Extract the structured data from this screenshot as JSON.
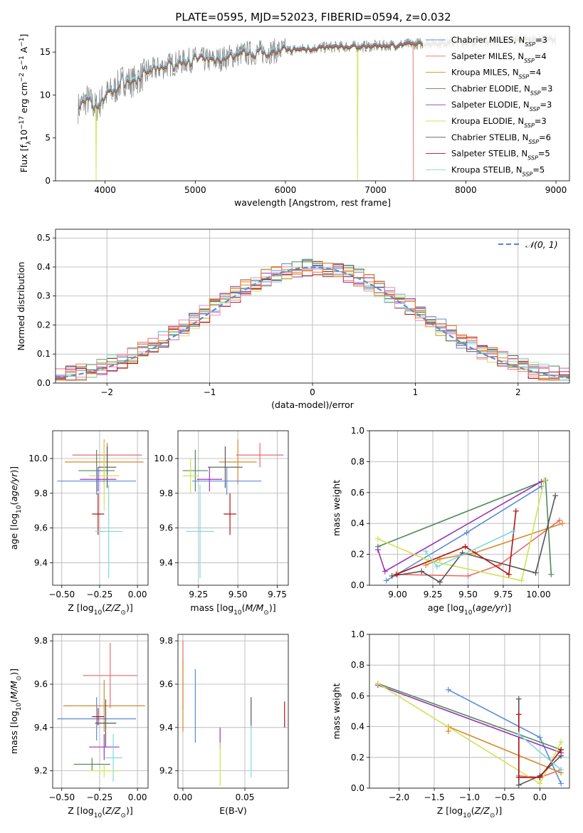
{
  "figure_title": "PLATE=0595, MJD=52023, FIBERID=0594, z=0.032",
  "colors": {
    "Chabrier MILES": "#5b8cd6",
    "Salpeter MILES": "#ea6a6a",
    "Kroupa MILES": "#d48a2c",
    "Chabrier ELODIE": "#4f8a55",
    "Salpeter ELODIE": "#9b32b5",
    "Kroupa ELODIE": "#cfe356",
    "Chabrier STELIB": "#555555",
    "Salpeter STELIB": "#b11414",
    "Kroupa STELIB": "#7fd8df",
    "data": "#808080",
    "extra_orange": "#ee7a1f",
    "extra_pink": "#ee88bb"
  },
  "chart_data": [
    {
      "id": "spectrum",
      "type": "line",
      "title": "PLATE=0595, MJD=52023, FIBERID=0594, z=0.032",
      "xlabel": "wavelength [Angstrom, rest frame]",
      "ylabel": "Flux [fλ10⁻¹⁷ erg cm⁻² s⁻¹ A⁻¹]",
      "xlim": [
        3450,
        9150
      ],
      "ylim": [
        0,
        18
      ],
      "xticks": [
        4000,
        5000,
        6000,
        7000,
        8000,
        9000
      ],
      "yticks": [
        0,
        5,
        10,
        15
      ],
      "grid": false,
      "legend_position": "upper-right",
      "legend": [
        "Chabrier MILES, N_SSP=3",
        "Salpeter MILES, N_SSP=4",
        "Kroupa MILES, N_SSP=4",
        "Chabrier ELODIE, N_SSP=3",
        "Salpeter ELODIE, N_SSP=3",
        "Kroupa ELODIE, N_SSP=3",
        "Chabrier STELIB, N_SSP=6",
        "Salpeter STELIB, N_SSP=5",
        "Kroupa STELIB, N_SSP=5"
      ],
      "continuum_points": [
        [
          3700,
          8.5
        ],
        [
          3800,
          9.5
        ],
        [
          3900,
          8.5
        ],
        [
          4000,
          10.0
        ],
        [
          4100,
          10.5
        ],
        [
          4200,
          11.8
        ],
        [
          4300,
          11.5
        ],
        [
          4500,
          12.8
        ],
        [
          4700,
          13.5
        ],
        [
          5000,
          14.2
        ],
        [
          5200,
          14.0
        ],
        [
          5500,
          14.8
        ],
        [
          6000,
          15.2
        ],
        [
          6500,
          15.6
        ],
        [
          7000,
          15.7
        ],
        [
          7500,
          16.0
        ],
        [
          8000,
          16.2
        ],
        [
          8500,
          16.4
        ],
        [
          9000,
          16.5
        ]
      ],
      "model_end_wavelength": 9000,
      "dropouts": [
        [
          3900,
          "Kroupa ELODIE"
        ],
        [
          6800,
          "Kroupa ELODIE"
        ],
        [
          7420,
          "Salpeter MILES"
        ]
      ]
    },
    {
      "id": "residuals",
      "type": "histogram",
      "xlabel": "(data-model)/error",
      "ylabel": "Normed distribution",
      "xlim": [
        -2.5,
        2.5
      ],
      "ylim": [
        0,
        0.53
      ],
      "xticks": [
        -2,
        -1,
        0,
        1,
        2
      ],
      "yticks": [
        0.0,
        0.1,
        0.2,
        0.3,
        0.4,
        0.5
      ],
      "grid": true,
      "bin_width": 0.1,
      "legend_position": "upper-right",
      "reference_curve": {
        "label": "𝒩(0, 1)",
        "mean": 0,
        "sigma": 1
      }
    },
    {
      "id": "age-vs-z",
      "type": "errorbar",
      "xlabel": "Z [log₁₀(Z/Z⊙)]",
      "ylabel": "age  [log₁₀(age/yr)]",
      "xlim": [
        -0.56,
        0.07
      ],
      "ylim": [
        9.27,
        10.16
      ],
      "xticks": [
        -0.5,
        -0.25,
        0.0
      ],
      "yticks": [
        9.4,
        9.6,
        9.8,
        10.0
      ],
      "grid": true,
      "points": [
        {
          "series": "Salpeter MILES",
          "x": -0.2,
          "y": 10.02,
          "xerr": 0.23,
          "yerr": 0.07
        },
        {
          "series": "Kroupa MILES",
          "x": -0.22,
          "y": 9.98,
          "xerr": 0.26,
          "yerr": 0.13
        },
        {
          "series": "Chabrier STELIB",
          "x": -0.2,
          "y": 9.95,
          "xerr": 0.06,
          "yerr": 0.12
        },
        {
          "series": "Chabrier ELODIE",
          "x": -0.27,
          "y": 9.93,
          "xerr": 0.12,
          "yerr": 0.12
        },
        {
          "series": "Kroupa ELODIE",
          "x": -0.22,
          "y": 9.9,
          "xerr": 0.1,
          "yerr": 0.2
        },
        {
          "series": "Salpeter ELODIE",
          "x": -0.26,
          "y": 9.88,
          "xerr": 0.12,
          "yerr": 0.07
        },
        {
          "series": "Chabrier MILES",
          "x": -0.27,
          "y": 9.87,
          "xerr": 0.26,
          "yerr": 0.08
        },
        {
          "series": "Salpeter STELIB",
          "x": -0.26,
          "y": 9.68,
          "xerr": 0.04,
          "yerr": 0.12
        },
        {
          "series": "Kroupa STELIB",
          "x": -0.19,
          "y": 9.58,
          "xerr": 0.09,
          "yerr": 0.27
        }
      ]
    },
    {
      "id": "age-vs-mass",
      "type": "errorbar",
      "xlabel": "mass [log₁₀(M/M⊙)]",
      "ylabel": "",
      "xlim": [
        9.12,
        9.82
      ],
      "ylim": [
        9.27,
        10.16
      ],
      "xticks": [
        9.25,
        9.5,
        9.75
      ],
      "yticks": [
        9.4,
        9.6,
        9.8,
        10.0
      ],
      "grid": true,
      "points": [
        {
          "series": "Salpeter MILES",
          "x": 9.64,
          "y": 10.02,
          "xerr": 0.15,
          "yerr": 0.07
        },
        {
          "series": "Kroupa MILES",
          "x": 9.5,
          "y": 9.98,
          "xerr": 0.12,
          "yerr": 0.13
        },
        {
          "series": "Chabrier STELIB",
          "x": 9.42,
          "y": 9.95,
          "xerr": 0.11,
          "yerr": 0.12
        },
        {
          "series": "Chabrier ELODIE",
          "x": 9.23,
          "y": 9.93,
          "xerr": 0.08,
          "yerr": 0.12
        },
        {
          "series": "Kroupa ELODIE",
          "x": 9.2,
          "y": 9.9,
          "xerr": 0.05,
          "yerr": 0.1
        },
        {
          "series": "Salpeter ELODIE",
          "x": 9.32,
          "y": 9.88,
          "xerr": 0.08,
          "yerr": 0.07
        },
        {
          "series": "Chabrier MILES",
          "x": 9.43,
          "y": 9.87,
          "xerr": 0.22,
          "yerr": 0.08
        },
        {
          "series": "Salpeter STELIB",
          "x": 9.45,
          "y": 9.68,
          "xerr": 0.04,
          "yerr": 0.12
        },
        {
          "series": "Kroupa STELIB",
          "x": 9.26,
          "y": 9.58,
          "xerr": 0.09,
          "yerr": 0.27
        }
      ]
    },
    {
      "id": "weight-vs-age",
      "type": "line",
      "xlabel": "age  [log₁₀(age/yr)]",
      "ylabel": "mass weight",
      "xlim": [
        8.8,
        10.22
      ],
      "ylim": [
        0,
        1
      ],
      "xticks": [
        9.0,
        9.25,
        9.5,
        9.75,
        10.0
      ],
      "yticks": [
        0.0,
        0.2,
        0.4,
        0.6,
        0.8,
        1.0
      ],
      "grid": true,
      "series": [
        {
          "series": "Chabrier MILES",
          "x": [
            8.92,
            9.49,
            10.02
          ],
          "y": [
            0.03,
            0.34,
            0.64
          ]
        },
        {
          "series": "Salpeter MILES",
          "x": [
            9.0,
            9.5,
            9.72,
            10.15
          ],
          "y": [
            0.07,
            0.06,
            0.13,
            0.42
          ]
        },
        {
          "series": "Kroupa MILES",
          "x": [
            9.2,
            9.3,
            9.55,
            10.17
          ],
          "y": [
            0.13,
            0.17,
            0.21,
            0.4
          ]
        },
        {
          "series": "Chabrier ELODIE",
          "x": [
            8.86,
            10.05,
            10.09
          ],
          "y": [
            0.25,
            0.68,
            0.07
          ]
        },
        {
          "series": "Salpeter ELODIE",
          "x": [
            8.86,
            8.91,
            10.02
          ],
          "y": [
            0.23,
            0.09,
            0.67
          ]
        },
        {
          "series": "Kroupa ELODIE",
          "x": [
            8.86,
            9.22,
            9.88,
            10.04
          ],
          "y": [
            0.3,
            0.16,
            0.03,
            0.68
          ]
        },
        {
          "series": "Chabrier STELIB",
          "x": [
            8.96,
            9.17,
            9.3,
            9.46,
            9.98,
            10.12
          ],
          "y": [
            0.06,
            0.09,
            0.02,
            0.21,
            0.08,
            0.58
          ]
        },
        {
          "series": "Salpeter STELIB",
          "x": [
            8.99,
            9.48,
            9.79,
            9.84
          ],
          "y": [
            0.07,
            0.25,
            0.07,
            0.48
          ]
        },
        {
          "series": "Kroupa STELIB",
          "x": [
            9.2,
            9.28,
            9.82
          ],
          "y": [
            0.22,
            0.12,
            0.35
          ]
        }
      ]
    },
    {
      "id": "mass-vs-z",
      "type": "errorbar",
      "xlabel": "Z [log₁₀(Z/Z⊙)]",
      "ylabel": "mass [log₁₀(M/M⊙)]",
      "xlim": [
        -0.56,
        0.07
      ],
      "ylim": [
        9.12,
        9.83
      ],
      "xticks": [
        -0.5,
        -0.25,
        0.0
      ],
      "yticks": [
        9.2,
        9.4,
        9.6,
        9.8
      ],
      "grid": true,
      "points": [
        {
          "series": "Salpeter MILES",
          "x": -0.18,
          "y": 9.64,
          "xerr": 0.18,
          "yerr": 0.15
        },
        {
          "series": "Kroupa MILES",
          "x": -0.22,
          "y": 9.5,
          "xerr": 0.27,
          "yerr": 0.12
        },
        {
          "series": "Chabrier MILES",
          "x": -0.27,
          "y": 9.44,
          "xerr": 0.26,
          "yerr": 0.1
        },
        {
          "series": "Salpeter STELIB",
          "x": -0.26,
          "y": 9.45,
          "xerr": 0.04,
          "yerr": 0.04
        },
        {
          "series": "Chabrier STELIB",
          "x": -0.21,
          "y": 9.42,
          "xerr": 0.07,
          "yerr": 0.11
        },
        {
          "series": "Salpeter ELODIE",
          "x": -0.22,
          "y": 9.31,
          "xerr": 0.1,
          "yerr": 0.06
        },
        {
          "series": "Kroupa STELIB",
          "x": -0.16,
          "y": 9.26,
          "xerr": 0.06,
          "yerr": 0.11
        },
        {
          "series": "Chabrier ELODIE",
          "x": -0.3,
          "y": 9.23,
          "xerr": 0.12,
          "yerr": 0.03
        },
        {
          "series": "Kroupa ELODIE",
          "x": -0.22,
          "y": 9.2,
          "xerr": 0.1,
          "yerr": 0.03
        }
      ]
    },
    {
      "id": "mass-vs-ebv",
      "type": "errorbar",
      "xlabel": "E(B-V)",
      "ylabel": "",
      "xlim": [
        -0.004,
        0.085
      ],
      "ylim": [
        9.12,
        9.83
      ],
      "xticks": [
        0.0,
        0.05
      ],
      "yticks": [
        9.2,
        9.4,
        9.6,
        9.8
      ],
      "grid": true,
      "points": [
        {
          "series": "Salpeter MILES",
          "x": 0.0,
          "y": 9.64,
          "xerr": 0,
          "yerr": 0.16
        },
        {
          "series": "Kroupa MILES",
          "x": 0.0,
          "y": 9.55,
          "xerr": 0,
          "yerr": 0.17
        },
        {
          "series": "Chabrier MILES",
          "x": 0.01,
          "y": 9.5,
          "xerr": 0,
          "yerr": 0.17
        },
        {
          "series": "Salpeter ELODIE",
          "x": 0.03,
          "y": 9.35,
          "xerr": 0,
          "yerr": 0.05
        },
        {
          "series": "Kroupa ELODIE",
          "x": 0.03,
          "y": 9.23,
          "xerr": 0,
          "yerr": 0.1
        },
        {
          "series": "Chabrier STELIB",
          "x": 0.055,
          "y": 9.47,
          "xerr": 0,
          "yerr": 0.07
        },
        {
          "series": "Kroupa STELIB",
          "x": 0.055,
          "y": 9.29,
          "xerr": 0,
          "yerr": 0.12
        },
        {
          "series": "Salpeter STELIB",
          "x": 0.082,
          "y": 9.46,
          "xerr": 0,
          "yerr": 0.06
        }
      ]
    },
    {
      "id": "weight-vs-z",
      "type": "line",
      "xlabel": "Z [log₁₀(Z/Z⊙)]",
      "ylabel": "mass weight",
      "xlim": [
        -2.42,
        0.42
      ],
      "ylim": [
        0,
        1
      ],
      "xticks": [
        -2.0,
        -1.5,
        -1.0,
        -0.5,
        0.0
      ],
      "yticks": [
        0.0,
        0.2,
        0.4,
        0.6,
        0.8,
        1.0
      ],
      "grid": true,
      "series": [
        {
          "series": "Chabrier MILES",
          "x": [
            -1.3,
            0.0,
            0.3
          ],
          "y": [
            0.64,
            0.33,
            0.03
          ]
        },
        {
          "series": "Salpeter MILES",
          "x": [
            -0.3,
            0.0,
            0.3
          ],
          "y": [
            0.08,
            0.07,
            0.12
          ]
        },
        {
          "series": "Kroupa MILES",
          "x": [
            -1.3,
            -1.3,
            0.3
          ],
          "y": [
            0.37,
            0.4,
            0.1
          ]
        },
        {
          "series": "Chabrier ELODIE",
          "x": [
            -2.3,
            0.3
          ],
          "y": [
            0.68,
            0.25
          ]
        },
        {
          "series": "Salpeter ELODIE",
          "x": [
            -2.3,
            0.3
          ],
          "y": [
            0.67,
            0.23
          ]
        },
        {
          "series": "Kroupa ELODIE",
          "x": [
            -2.3,
            0.0,
            0.3
          ],
          "y": [
            0.68,
            0.03,
            0.3
          ]
        },
        {
          "series": "Chabrier STELIB",
          "x": [
            -0.3,
            -0.3,
            0.0,
            0.3
          ],
          "y": [
            0.58,
            0.02,
            0.08,
            0.21
          ]
        },
        {
          "series": "Salpeter STELIB",
          "x": [
            -0.3,
            -0.3,
            0.0,
            0.3
          ],
          "y": [
            0.48,
            0.07,
            0.07,
            0.25
          ]
        },
        {
          "series": "Kroupa STELIB",
          "x": [
            -0.3,
            0.3
          ],
          "y": [
            0.35,
            0.12
          ]
        }
      ]
    }
  ]
}
